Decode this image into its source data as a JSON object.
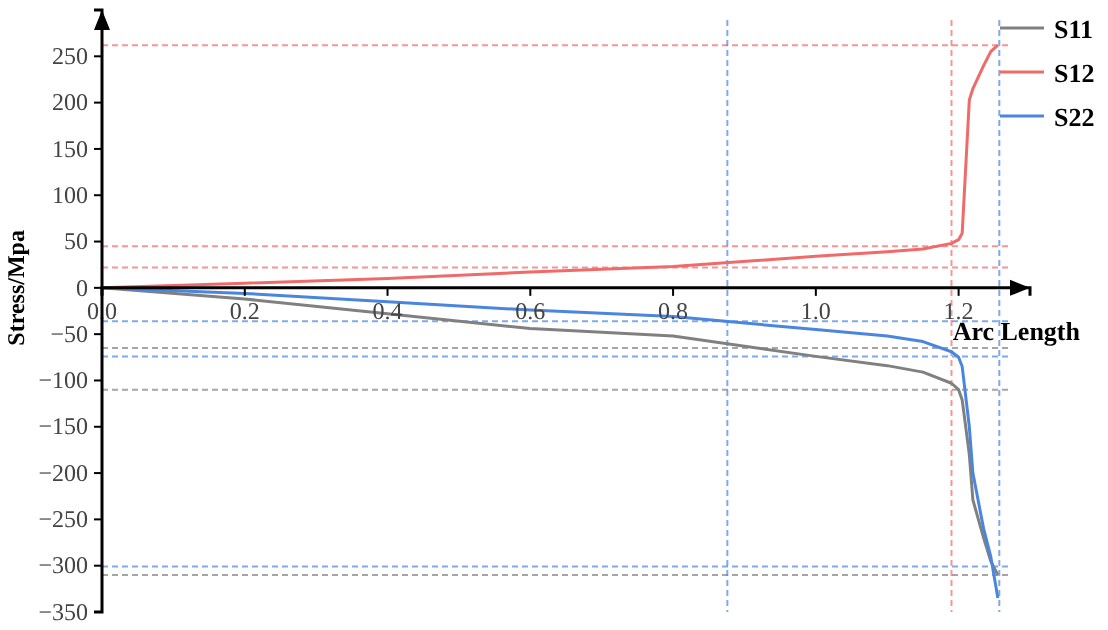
{
  "chart_data": {
    "type": "line",
    "xlabel": "Arc Length",
    "ylabel": "Stress/Mpa",
    "xlim": [
      0,
      1.3
    ],
    "ylim": [
      -350,
      300
    ],
    "xticks": [
      {
        "value": 0,
        "label": "0.0"
      },
      {
        "value": 0.2,
        "label": "0.2"
      },
      {
        "value": 0.4,
        "label": "0.4"
      },
      {
        "value": 0.6,
        "label": "0.6"
      },
      {
        "value": 0.8,
        "label": "0.8"
      },
      {
        "value": 1.0,
        "label": "1.0"
      },
      {
        "value": 1.2,
        "label": "1.2"
      }
    ],
    "yticks": [
      -350,
      -300,
      -250,
      -200,
      -150,
      -100,
      -50,
      0,
      50,
      100,
      150,
      200,
      250
    ],
    "x": [
      0,
      0.2,
      0.4,
      0.6,
      0.8,
      1.0,
      1.1,
      1.15,
      1.19,
      1.2,
      1.205,
      1.215,
      1.22,
      1.235,
      1.245,
      1.255
    ],
    "series": [
      {
        "name": "S11",
        "color": "#808080",
        "values": [
          0,
          -12,
          -28,
          -44,
          -52,
          -74,
          -84,
          -91,
          -103,
          -110,
          -121,
          -180,
          -229,
          -270,
          -295,
          -310
        ]
      },
      {
        "name": "S12",
        "color": "#f06a6a",
        "values": [
          0,
          5,
          10,
          17,
          23,
          34,
          39,
          42,
          48,
          52,
          59,
          203,
          215,
          240,
          255,
          262
        ]
      },
      {
        "name": "S22",
        "color": "#4a86e0",
        "values": [
          0,
          -6,
          -15,
          -24,
          -31,
          -45,
          -52,
          -58,
          -69,
          -75,
          -85,
          -150,
          -200,
          -260,
          -290,
          -335
        ]
      }
    ],
    "ref_lines": [
      {
        "axis": "y",
        "value": 262,
        "color": "#f06a6a"
      },
      {
        "axis": "y",
        "value": 45,
        "color": "#f06a6a"
      },
      {
        "axis": "y",
        "value": 22,
        "color": "#f06a6a"
      },
      {
        "axis": "y",
        "value": -65,
        "color": "#808080"
      },
      {
        "axis": "y",
        "value": -110,
        "color": "#808080"
      },
      {
        "axis": "y",
        "value": -310,
        "color": "#808080"
      },
      {
        "axis": "y",
        "value": -36,
        "color": "#4a86e0"
      },
      {
        "axis": "y",
        "value": -74,
        "color": "#4a86e0"
      },
      {
        "axis": "y",
        "value": -301,
        "color": "#4a86e0"
      },
      {
        "axis": "x",
        "value": 0.876,
        "color": "#4a86e0"
      },
      {
        "axis": "x",
        "value": 1.19,
        "color": "#f06a6a"
      },
      {
        "axis": "x",
        "value": 1.257,
        "color": "#4a86e0"
      }
    ],
    "legend": "top right",
    "line_style": "solid",
    "grid": false
  }
}
